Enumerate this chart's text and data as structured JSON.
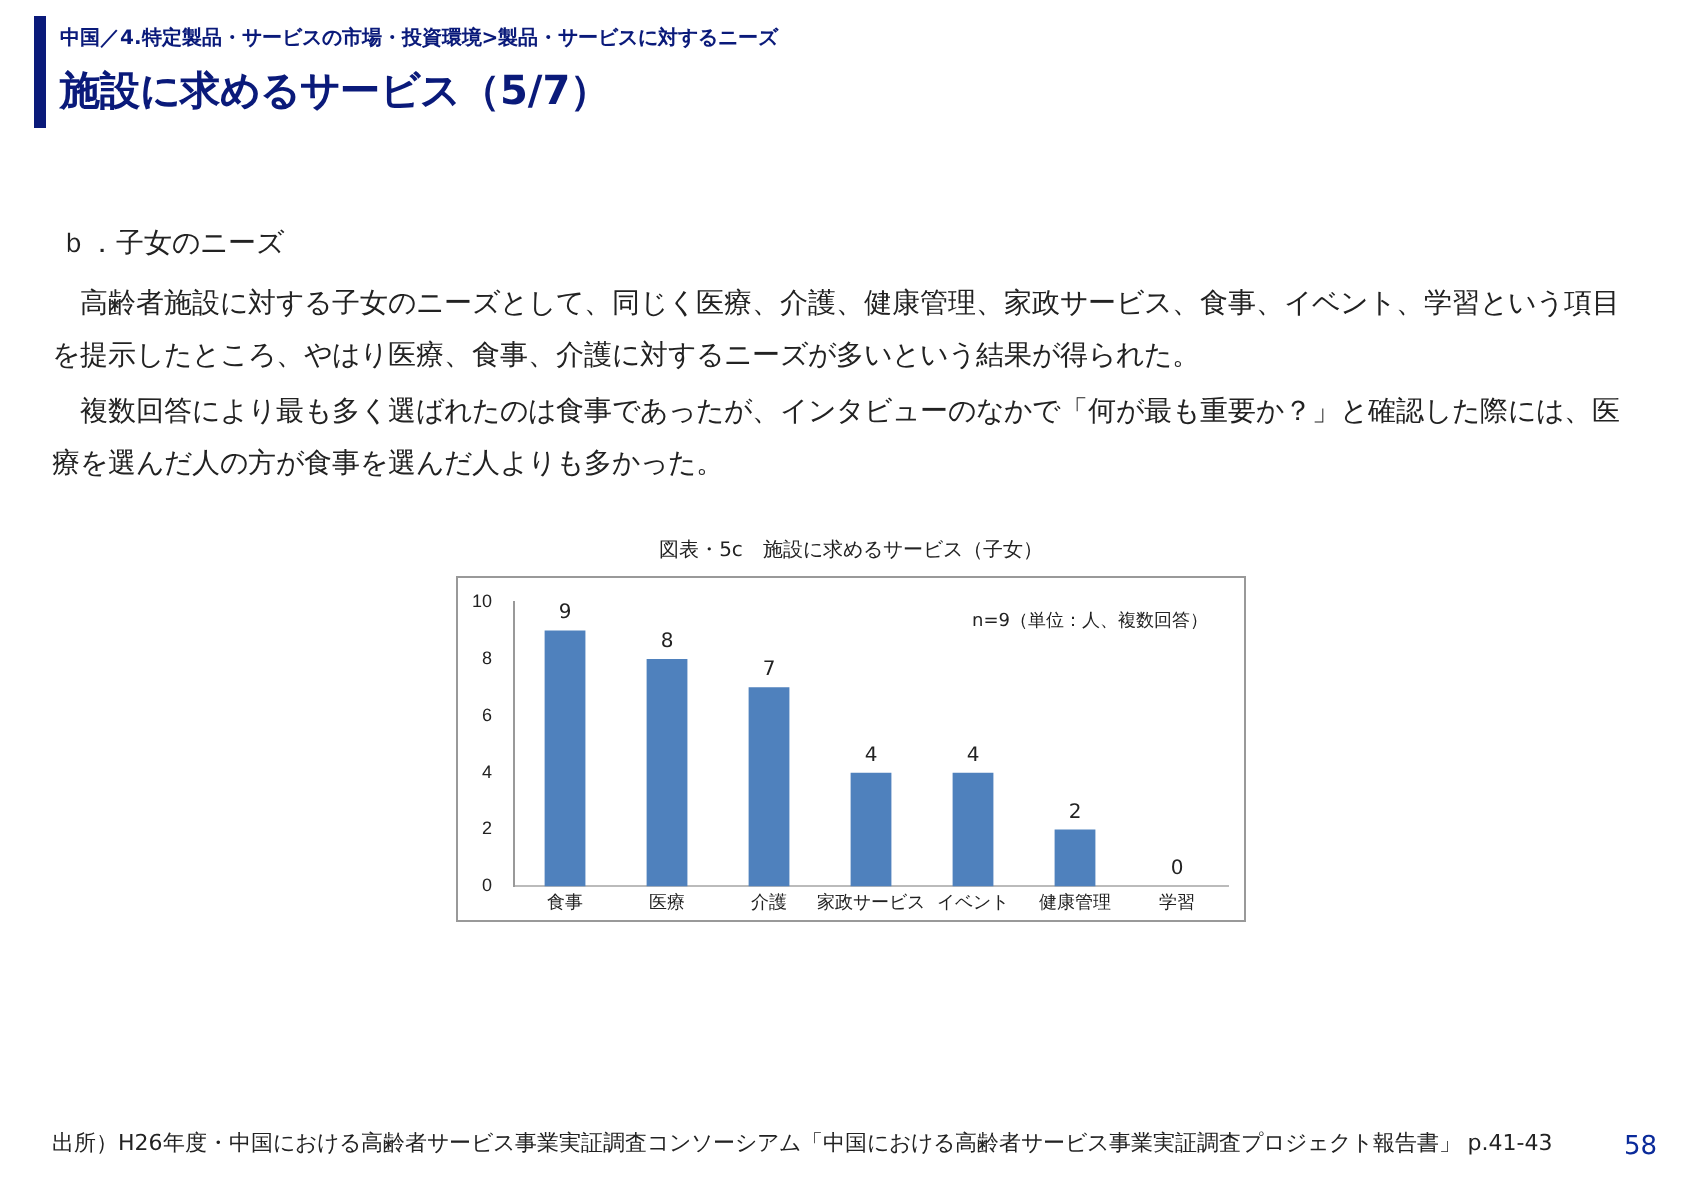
{
  "chart_data": {
    "type": "bar",
    "title": "図表・5c　施設に求めるサービス（子女）",
    "subtitle": "n=9（単位：人、複数回答）",
    "categories": [
      "食事",
      "医療",
      "介護",
      "家政サービス",
      "イベント",
      "健康管理",
      "学習"
    ],
    "values": [
      9,
      8,
      7,
      4,
      4,
      2,
      0
    ],
    "color": "#4f81bd",
    "data_labels": true,
    "grid": false,
    "legend": false,
    "ylim": [
      0,
      10
    ],
    "yticks": [
      0,
      2,
      4,
      6,
      8,
      10
    ],
    "annotations": [
      "中国／4.特定製品・サービスの市場・投資環境>製品・サービスに対するニーズ",
      "施設に求めるサービス（5/7）",
      "ｂ．子女のニーズ",
      "　高齢者施設に対する子女のニーズとして、同じく医療、介護、健康管理、家政サービス、食事、イベント、学習という項目を提示したところ、やはり医療、食事、介護に対するニーズが多いという結果が得られた。",
      "　複数回答により最も多く選ばれたのは食事であったが、インタビューのなかで「何が最も重要か？」と確認した際には、医療を選んだ人の方が食事を選んだ人よりも多かった。",
      "出所）H26年度・中国における高齢者サービス事業実証調査コンソーシアム「中国における高齢者サービス事業実証調査プロジェクト報告書」 p.41-43",
      "58"
    ]
  }
}
